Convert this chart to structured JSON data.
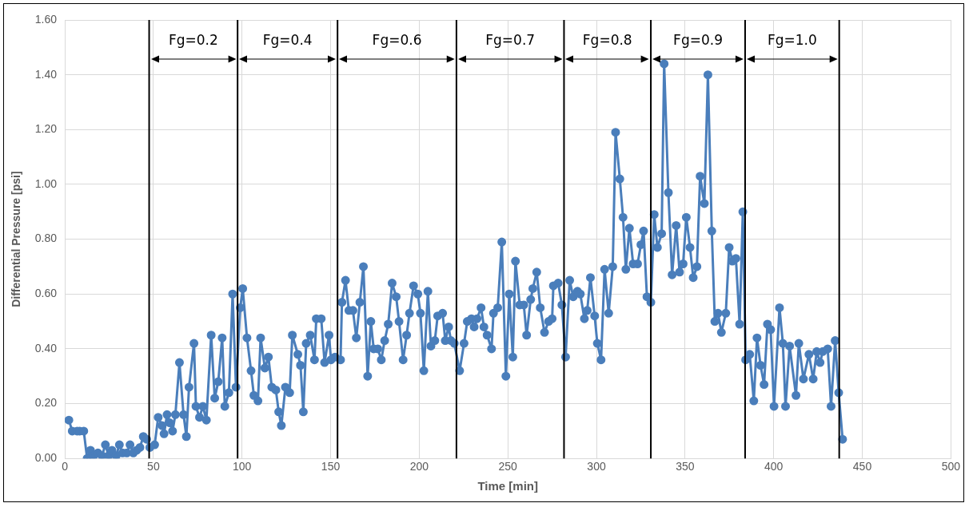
{
  "chart_data": {
    "type": "line",
    "xlabel": "Time [min]",
    "ylabel": "Differential Pressure [psi]",
    "color": "#4a7ebb",
    "marker": "circle",
    "grid": true,
    "xlim": [
      0,
      500
    ],
    "xticks": [
      0,
      50,
      100,
      150,
      200,
      250,
      300,
      350,
      400,
      450,
      500
    ],
    "ylim": [
      0,
      1.6
    ],
    "yticks": [
      {
        "value": 0,
        "label": "0.00"
      },
      {
        "value": 0.2,
        "label": "0.20"
      },
      {
        "value": 0.4,
        "label": "0.40"
      },
      {
        "value": 0.6,
        "label": "0.60"
      },
      {
        "value": 0.8,
        "label": "0.80"
      },
      {
        "value": 1,
        "label": "1.00"
      },
      {
        "value": 1.2,
        "label": "1.20"
      },
      {
        "value": 1.4,
        "label": "1.40"
      },
      {
        "value": 1.6,
        "label": "1.60"
      }
    ],
    "x": [
      2.3,
      4.2,
      7,
      8.4,
      10.7,
      12.6,
      14.5,
      16.3,
      18.7,
      21,
      22.9,
      24.7,
      26.6,
      29,
      30.8,
      32.6,
      35,
      36.8,
      38.7,
      40.6,
      42.4,
      44.3,
      46.2,
      48,
      50.7,
      52.7,
      54.9,
      56,
      57.7,
      59.2,
      60.8,
      62.4,
      64.7,
      67,
      68.6,
      70.1,
      72.9,
      74,
      76,
      77.9,
      79.9,
      82.6,
      84.6,
      86.6,
      88.8,
      90.3,
      92.6,
      94.7,
      96.6,
      99,
      100.4,
      102.8,
      105.1,
      106.7,
      109,
      110.5,
      112.9,
      114.9,
      116.8,
      119.1,
      120.7,
      122.2,
      124.5,
      126.9,
      128.4,
      131.5,
      133,
      134.6,
      136.2,
      138.5,
      140.9,
      141.9,
      144.7,
      146.6,
      149.1,
      150.2,
      152.5,
      155.6,
      156.4,
      158.4,
      160.3,
      162.6,
      164.5,
      166.5,
      168.5,
      170.9,
      172.7,
      174.3,
      176.6,
      178.6,
      180.5,
      182.5,
      184.7,
      187,
      188.6,
      190.9,
      192.9,
      194.5,
      196.8,
      199.2,
      200.7,
      202.6,
      204.9,
      206.6,
      208.8,
      210.4,
      213.2,
      214.7,
      216.6,
      217.9,
      219.8,
      222.8,
      225.3,
      227.1,
      229.5,
      231,
      232.6,
      234.9,
      236.5,
      238.3,
      240.8,
      241.9,
      244.3,
      246.6,
      248.9,
      250.8,
      252.8,
      254.3,
      256.7,
      259,
      260.6,
      262.9,
      264.1,
      266.3,
      268.3,
      270.7,
      273,
      275,
      275.7,
      278.4,
      280.5,
      282.6,
      284.9,
      286.9,
      289.3,
      290.9,
      293.2,
      294.8,
      296.6,
      299,
      300.5,
      302.6,
      304.6,
      306.9,
      309.2,
      310.8,
      313.2,
      315,
      316.6,
      318.6,
      320.7,
      323.2,
      325.1,
      326.6,
      328.5,
      330.7,
      332.6,
      334.4,
      336.8,
      338.2,
      340.6,
      342.7,
      345,
      346.9,
      348.9,
      350.7,
      352.8,
      354.6,
      356.7,
      358.5,
      360.9,
      362.9,
      365.1,
      366.8,
      368.6,
      370.5,
      373,
      374.9,
      376.7,
      378.7,
      380.8,
      382.6,
      384.2,
      386.5,
      388.8,
      390.6,
      392.6,
      394.6,
      396.5,
      398.3,
      400.2,
      403.3,
      405.2,
      406.7,
      409,
      412.6,
      414.2,
      416.8,
      419.9,
      422.3,
      424.3,
      426.2,
      427.7,
      430.5,
      432.4,
      434.7,
      436.7,
      438.9
    ],
    "values": [
      0.14,
      0.1,
      0.1,
      0.1,
      0.1,
      0,
      0.03,
      0.01,
      0.02,
      0.01,
      0.05,
      0.01,
      0.03,
      0.01,
      0.05,
      0.02,
      0.02,
      0.05,
      0.02,
      0.03,
      0.04,
      0.08,
      0.07,
      0.04,
      0.05,
      0.15,
      0.12,
      0.09,
      0.16,
      0.13,
      0.1,
      0.16,
      0.35,
      0.16,
      0.08,
      0.26,
      0.42,
      0.19,
      0.15,
      0.19,
      0.14,
      0.45,
      0.22,
      0.28,
      0.44,
      0.19,
      0.24,
      0.6,
      0.26,
      0.55,
      0.62,
      0.44,
      0.32,
      0.23,
      0.21,
      0.44,
      0.33,
      0.37,
      0.26,
      0.25,
      0.17,
      0.12,
      0.26,
      0.24,
      0.45,
      0.38,
      0.34,
      0.17,
      0.42,
      0.45,
      0.36,
      0.51,
      0.51,
      0.35,
      0.45,
      0.36,
      0.37,
      0.36,
      0.57,
      0.65,
      0.54,
      0.54,
      0.44,
      0.57,
      0.7,
      0.3,
      0.5,
      0.4,
      0.4,
      0.36,
      0.43,
      0.49,
      0.64,
      0.59,
      0.5,
      0.36,
      0.45,
      0.53,
      0.63,
      0.6,
      0.53,
      0.32,
      0.61,
      0.41,
      0.43,
      0.52,
      0.53,
      0.43,
      0.48,
      0.43,
      0.42,
      0.32,
      0.42,
      0.5,
      0.51,
      0.48,
      0.51,
      0.55,
      0.48,
      0.45,
      0.4,
      0.53,
      0.55,
      0.79,
      0.3,
      0.6,
      0.37,
      0.72,
      0.56,
      0.56,
      0.45,
      0.58,
      0.62,
      0.68,
      0.55,
      0.46,
      0.5,
      0.51,
      0.63,
      0.64,
      0.56,
      0.37,
      0.65,
      0.59,
      0.61,
      0.6,
      0.51,
      0.54,
      0.66,
      0.52,
      0.42,
      0.36,
      0.69,
      0.53,
      0.7,
      1.19,
      1.02,
      0.88,
      0.69,
      0.84,
      0.71,
      0.71,
      0.78,
      0.83,
      0.59,
      0.57,
      0.89,
      0.77,
      0.82,
      1.44,
      0.97,
      0.67,
      0.85,
      0.68,
      0.71,
      0.88,
      0.77,
      0.66,
      0.7,
      1.03,
      0.93,
      1.4,
      0.83,
      0.5,
      0.53,
      0.46,
      0.53,
      0.77,
      0.72,
      0.73,
      0.49,
      0.9,
      0.36,
      0.38,
      0.21,
      0.44,
      0.34,
      0.27,
      0.49,
      0.47,
      0.19,
      0.55,
      0.42,
      0.19,
      0.41,
      0.23,
      0.42,
      0.29,
      0.38,
      0.29,
      0.39,
      0.35,
      0.39,
      0.4,
      0.19,
      0.43,
      0.24,
      0.07
    ],
    "ref_lines": [
      {
        "axis": "x",
        "value": 47.6,
        "color": "#000000"
      },
      {
        "axis": "x",
        "value": 97.5,
        "color": "#000000"
      },
      {
        "axis": "x",
        "value": 153.9,
        "color": "#000000"
      },
      {
        "axis": "x",
        "value": 221,
        "color": "#000000"
      },
      {
        "axis": "x",
        "value": 281.7,
        "color": "#000000"
      },
      {
        "axis": "x",
        "value": 330.7,
        "color": "#000000"
      },
      {
        "axis": "x",
        "value": 383.9,
        "color": "#000000"
      },
      {
        "axis": "x",
        "value": 437,
        "color": "#000000"
      }
    ],
    "annotations": [
      "Fg=0.2",
      "Fg=0.4",
      "Fg=0.6",
      "Fg=0.7",
      "Fg=0.8",
      "Fg=0.9",
      "Fg=1.0"
    ]
  }
}
